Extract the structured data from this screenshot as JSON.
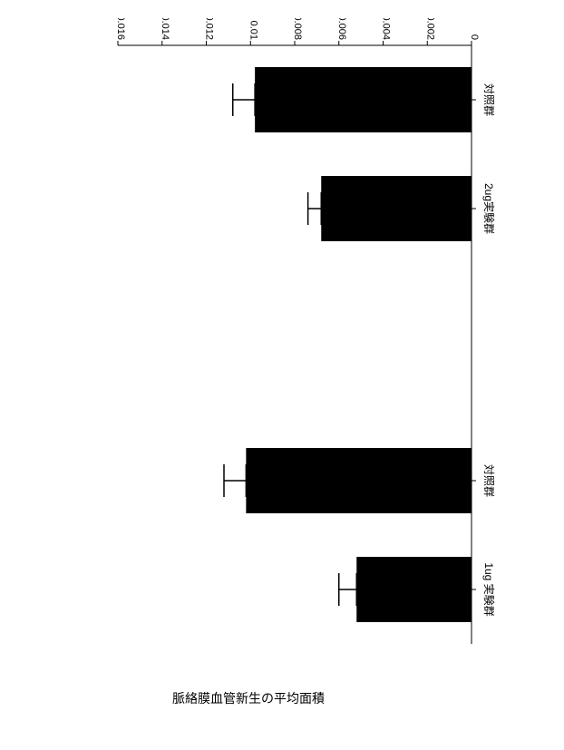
{
  "chart": {
    "type": "bar",
    "orientation": "rotated-right",
    "ylabel": "脈絡膜血管新生の平均面積",
    "ylabel_fontsize": 14,
    "categories": [
      "1ug 実験群",
      "対照群",
      "2ug実験群",
      "対照群"
    ],
    "values": [
      0.0052,
      0.0102,
      0.0068,
      0.0098
    ],
    "errors": [
      0.0008,
      0.001,
      0.0006,
      0.001
    ],
    "bar_color": "#000000",
    "error_color": "#000000",
    "yticks": [
      0,
      0.002,
      0.004,
      0.006,
      0.008,
      0.01,
      0.012,
      0.014,
      0.016
    ],
    "ylim": [
      0,
      0.016
    ],
    "group_gap": true,
    "bar_width": 0.6,
    "tick_fontsize": 11,
    "cat_fontsize": 12,
    "background_color": "#ffffff"
  }
}
